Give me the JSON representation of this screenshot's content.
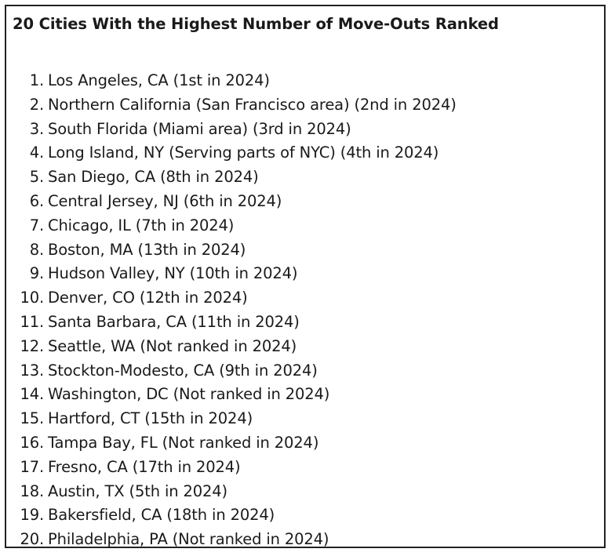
{
  "title": "20 Cities With the Highest Number of Move-Outs Ranked",
  "items": [
    {
      "number": "1.",
      "text": "Los Angeles, CA (1st in 2024)"
    },
    {
      "number": "2.",
      "text": "Northern California (San Francisco area) (2nd in 2024)"
    },
    {
      "number": "3.",
      "text": "South Florida (Miami area) (3rd in 2024)"
    },
    {
      "number": "4.",
      "text": "Long Island, NY (Serving parts of NYC) (4th in 2024)"
    },
    {
      "number": "5.",
      "text": "San Diego, CA (8th in 2024)"
    },
    {
      "number": "6.",
      "text": "Central Jersey, NJ (6th in 2024)"
    },
    {
      "number": "7.",
      "text": "Chicago, IL (7th in 2024)"
    },
    {
      "number": "8.",
      "text": "Boston, MA (13th in 2024)"
    },
    {
      "number": "9.",
      "text": "Hudson Valley, NY (10th in 2024)"
    },
    {
      "number": "10.",
      "text": "Denver, CO (12th in 2024)"
    },
    {
      "number": "11.",
      "text": "Santa Barbara, CA (11th in 2024)"
    },
    {
      "number": "12.",
      "text": "Seattle, WA (Not ranked in 2024)"
    },
    {
      "number": "13.",
      "text": "Stockton-Modesto, CA (9th in 2024)"
    },
    {
      "number": "14.",
      "text": "Washington, DC (Not ranked in 2024)"
    },
    {
      "number": "15.",
      "text": "Hartford, CT (15th in 2024)"
    },
    {
      "number": "16.",
      "text": "Tampa Bay, FL (Not ranked in 2024)"
    },
    {
      "number": "17.",
      "text": "Fresno, CA (17th in 2024)"
    },
    {
      "number": "18.",
      "text": "Austin, TX (5th in 2024)"
    },
    {
      "number": "19.",
      "text": "Bakersfield, CA (18th in 2024)"
    },
    {
      "number": "20.",
      "text": "Philadelphia, PA (Not ranked in 2024)"
    }
  ]
}
